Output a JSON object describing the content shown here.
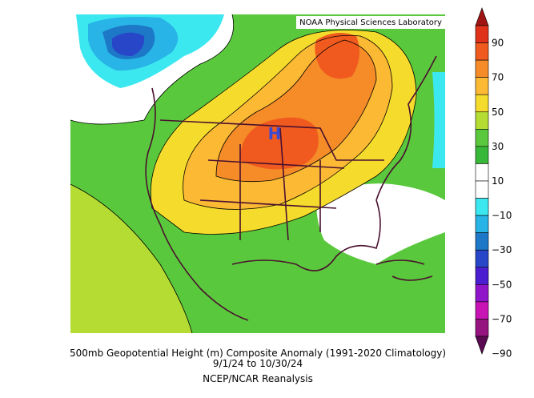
{
  "header": {
    "lab": "NOAA Physical Sciences Laboratory"
  },
  "map": {
    "high_label": "H"
  },
  "caption": {
    "line1": "500mb Geopotential Height (m) Composite Anomaly (1991-2020 Climatology)",
    "line2": "9/1/24  to 10/30/24",
    "line3": "NCEP/NCAR Reanalysis"
  },
  "colorbar": {
    "ticks": [
      "90",
      "70",
      "50",
      "30",
      "10",
      "−10",
      "−30",
      "−50",
      "−70",
      "−90"
    ],
    "colors": [
      "#a01414",
      "#e0321a",
      "#f05a1e",
      "#f58c28",
      "#fbb934",
      "#f5dc2c",
      "#b4dc32",
      "#5ac83c",
      "#38b838",
      "#ffffff",
      "#ffffff",
      "#3ce8f0",
      "#28b4e6",
      "#1e78c8",
      "#2846c8",
      "#4a1ed0",
      "#9014c8",
      "#c814b4",
      "#961480",
      "#5a0a50"
    ]
  }
}
